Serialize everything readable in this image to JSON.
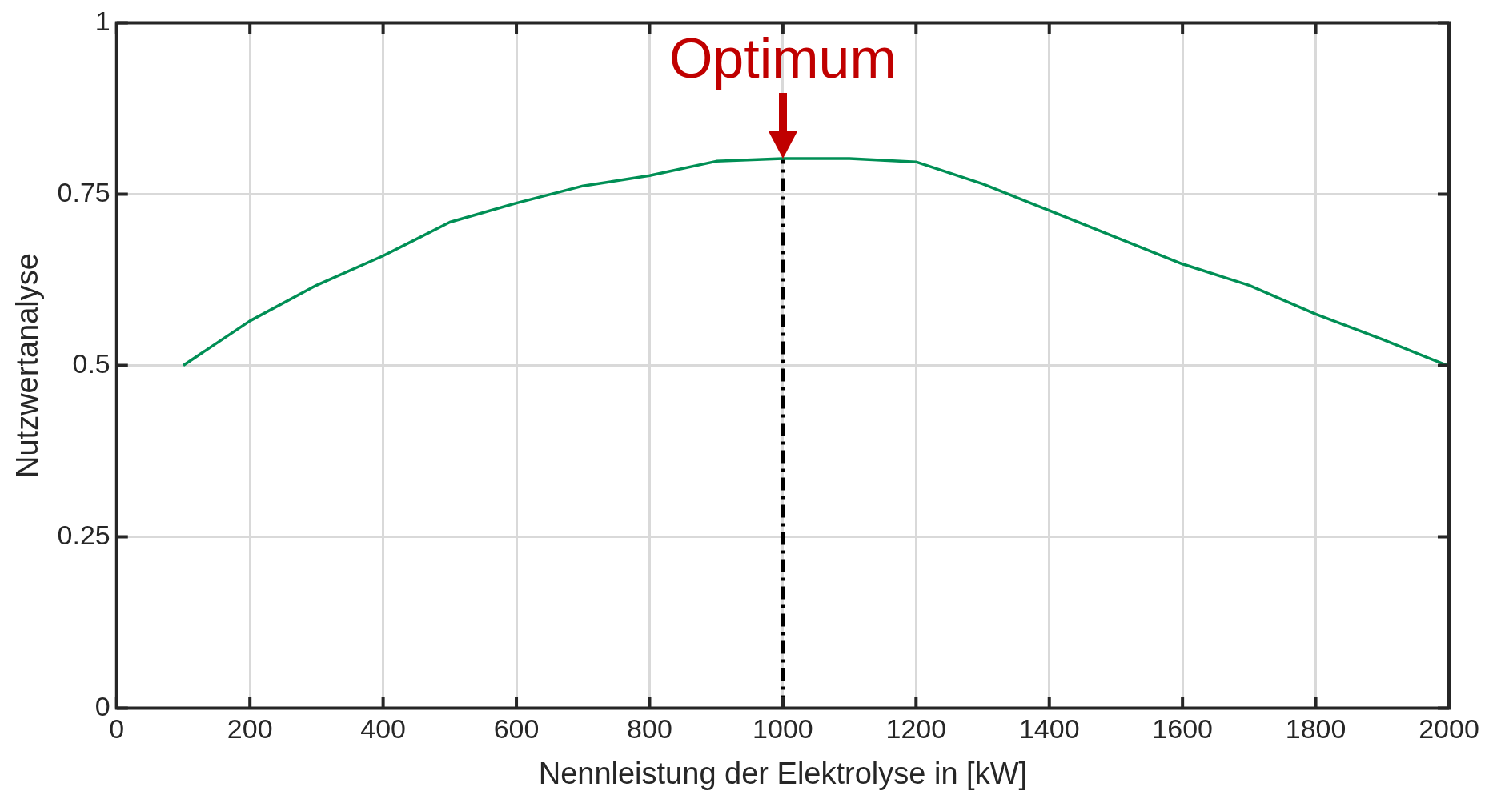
{
  "chart_data": {
    "type": "line",
    "xlabel": "Nennleistung der Elektrolyse in [kW]",
    "ylabel": "Nutzwertanalyse",
    "x": [
      100,
      200,
      300,
      400,
      500,
      600,
      700,
      800,
      900,
      1000,
      1100,
      1200,
      1300,
      1400,
      1500,
      1600,
      1700,
      1800,
      1900,
      2000
    ],
    "series": [
      {
        "color": "#008f55",
        "values": [
          0.5,
          0.565,
          0.617,
          0.66,
          0.709,
          0.737,
          0.762,
          0.777,
          0.798,
          0.802,
          0.802,
          0.797,
          0.765,
          0.726,
          0.687,
          0.648,
          0.617,
          0.575,
          0.538,
          0.499
        ]
      }
    ],
    "xlim": [
      0,
      2000
    ],
    "xticks": [
      0,
      200,
      400,
      600,
      800,
      1000,
      1200,
      1400,
      1600,
      1800,
      2000
    ],
    "ylim": [
      0,
      1
    ],
    "yticks": [
      0,
      0.25,
      0.5,
      0.75,
      1
    ],
    "grid": true,
    "legend": false,
    "marker": "none",
    "line_style": "solid",
    "ref_lines": [
      {
        "axis": "x",
        "value": 1000,
        "color": "#000000",
        "line_style": "dashed"
      }
    ],
    "annotations": [
      {
        "text": "Optimum",
        "x": 1000,
        "y": 0.802
      }
    ]
  }
}
